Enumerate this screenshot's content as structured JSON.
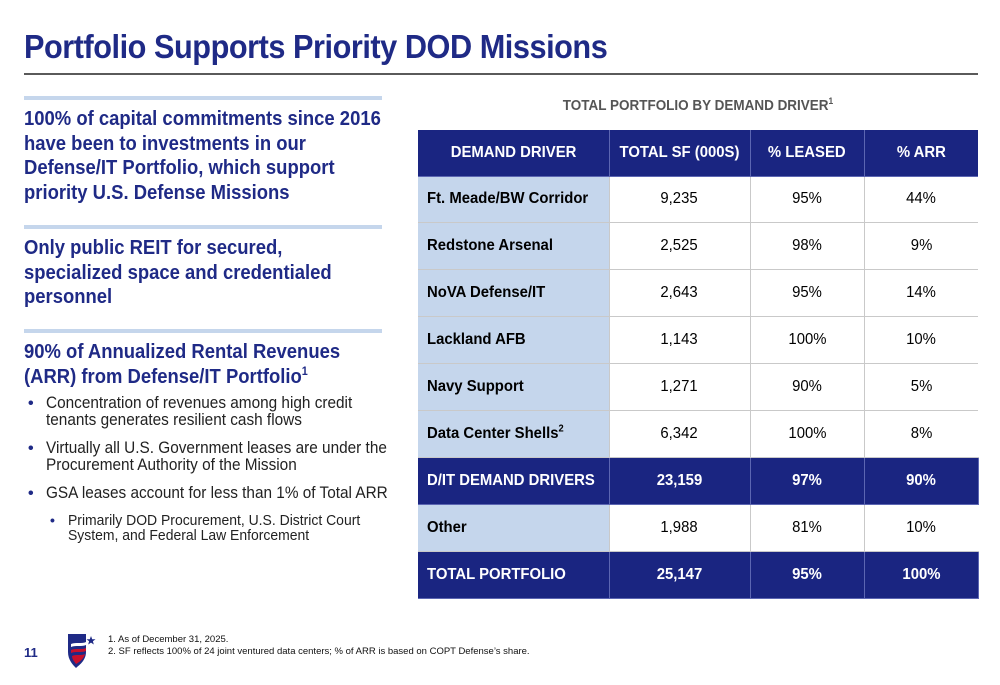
{
  "title": "Portfolio Supports Priority DOD Missions",
  "left": {
    "section1": "100% of capital commitments since 2016 have been to investments in our Defense/IT Portfolio, which support priority U.S. Defense Missions",
    "section2": "Only public REIT for secured, specialized space and credentialed personnel",
    "section3": "90% of Annualized Rental Revenues (ARR) from Defense/IT Portfolio",
    "section3_sup": "1",
    "bullets": [
      "Concentration of revenues among high credit tenants generates resilient cash flows",
      "Virtually all U.S. Government leases are under the Procurement Authority of the Mission",
      "GSA leases account for less than 1% of Total ARR"
    ],
    "sub_bullet": "Primarily DOD Procurement, U.S. District Court System, and Federal Law Enforcement"
  },
  "table": {
    "title": "TOTAL PORTFOLIO BY DEMAND DRIVER",
    "title_sup": "1",
    "headers": [
      "DEMAND DRIVER",
      "TOTAL SF (000S)",
      "% LEASED",
      "% ARR"
    ],
    "rows": [
      {
        "label": "Ft. Meade/BW Corridor",
        "sup": "",
        "sf": "9,235",
        "leased": "95%",
        "arr": "44%"
      },
      {
        "label": "Redstone Arsenal",
        "sup": "",
        "sf": "2,525",
        "leased": "98%",
        "arr": "9%"
      },
      {
        "label": "NoVA Defense/IT",
        "sup": "",
        "sf": "2,643",
        "leased": "95%",
        "arr": "14%"
      },
      {
        "label": "Lackland AFB",
        "sup": "",
        "sf": "1,143",
        "leased": "100%",
        "arr": "10%"
      },
      {
        "label": "Navy Support",
        "sup": "",
        "sf": "1,271",
        "leased": "90%",
        "arr": "5%"
      },
      {
        "label": "Data Center Shells",
        "sup": "2",
        "sf": "6,342",
        "leased": "100%",
        "arr": "8%"
      },
      {
        "label": "D/IT DEMAND DRIVERS",
        "sup": "",
        "sf": "23,159",
        "leased": "97%",
        "arr": "90%"
      },
      {
        "label": "Other",
        "sup": "",
        "sf": "1,988",
        "leased": "81%",
        "arr": "10%"
      },
      {
        "label": "TOTAL PORTFOLIO",
        "sup": "",
        "sf": "25,147",
        "leased": "95%",
        "arr": "100%"
      }
    ]
  },
  "footer": {
    "page_number": "11",
    "footnote1": "1.  As of December 31, 2025.",
    "footnote2": "2.  SF reflects 100% of 24 joint ventured data centers; % of ARR is based on COPT Defense’s share.",
    "logo_icon": "copt-defense-logo-icon"
  },
  "colors": {
    "navy": "#1a2581",
    "light_blue": "#c5d6ec",
    "title_blue": "#1f2a86"
  }
}
